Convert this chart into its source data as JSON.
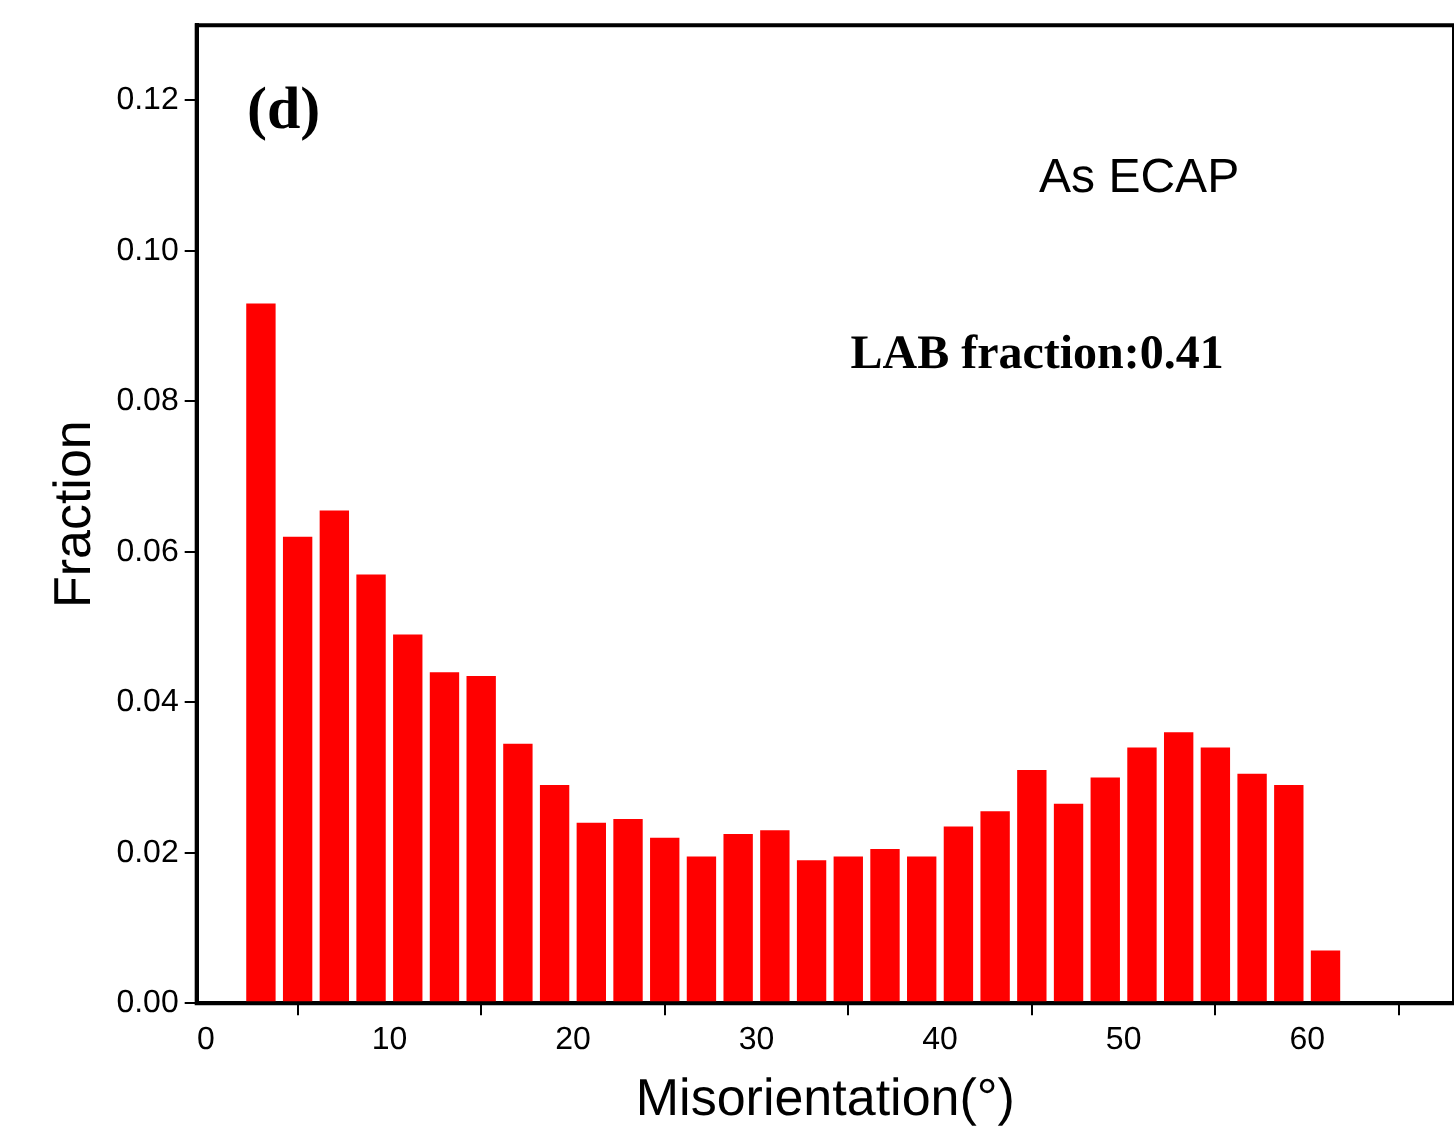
{
  "chart_data": {
    "type": "histogram",
    "xlabel": "Misorientation(°)",
    "ylabel": "Fraction",
    "bins": [
      2,
      4,
      6,
      8,
      10,
      12,
      14,
      16,
      18,
      20,
      22,
      24,
      26,
      28,
      30,
      32,
      34,
      36,
      38,
      40,
      42,
      44,
      46,
      48,
      50,
      52,
      54,
      56,
      58,
      60,
      62
    ],
    "values": [
      0.093,
      0.062,
      0.0655,
      0.057,
      0.049,
      0.044,
      0.0435,
      0.0345,
      0.029,
      0.024,
      0.0245,
      0.022,
      0.0195,
      0.0225,
      0.023,
      0.019,
      0.0195,
      0.0205,
      0.0195,
      0.0235,
      0.0255,
      0.031,
      0.0265,
      0.03,
      0.034,
      0.036,
      0.034,
      0.0305,
      0.029,
      0.007
    ],
    "color": "#ff0000",
    "xlim": [
      -0.5,
      68
    ],
    "xticks": [
      0,
      10,
      20,
      30,
      40,
      50,
      60
    ],
    "ylim": [
      0,
      0.13
    ],
    "yticks": [
      {
        "value": 0,
        "label": "0.00"
      },
      {
        "value": 0.02,
        "label": "0.02"
      },
      {
        "value": 0.04,
        "label": "0.04"
      },
      {
        "value": 0.06,
        "label": "0.06"
      },
      {
        "value": 0.08,
        "label": "0.08"
      },
      {
        "value": 0.1,
        "label": "0.10"
      },
      {
        "value": 0.12,
        "label": "0.12"
      }
    ],
    "grid": false,
    "legend": false,
    "annotations": [
      "(d)",
      "As ECAP",
      "LAB fraction:0.41"
    ]
  }
}
